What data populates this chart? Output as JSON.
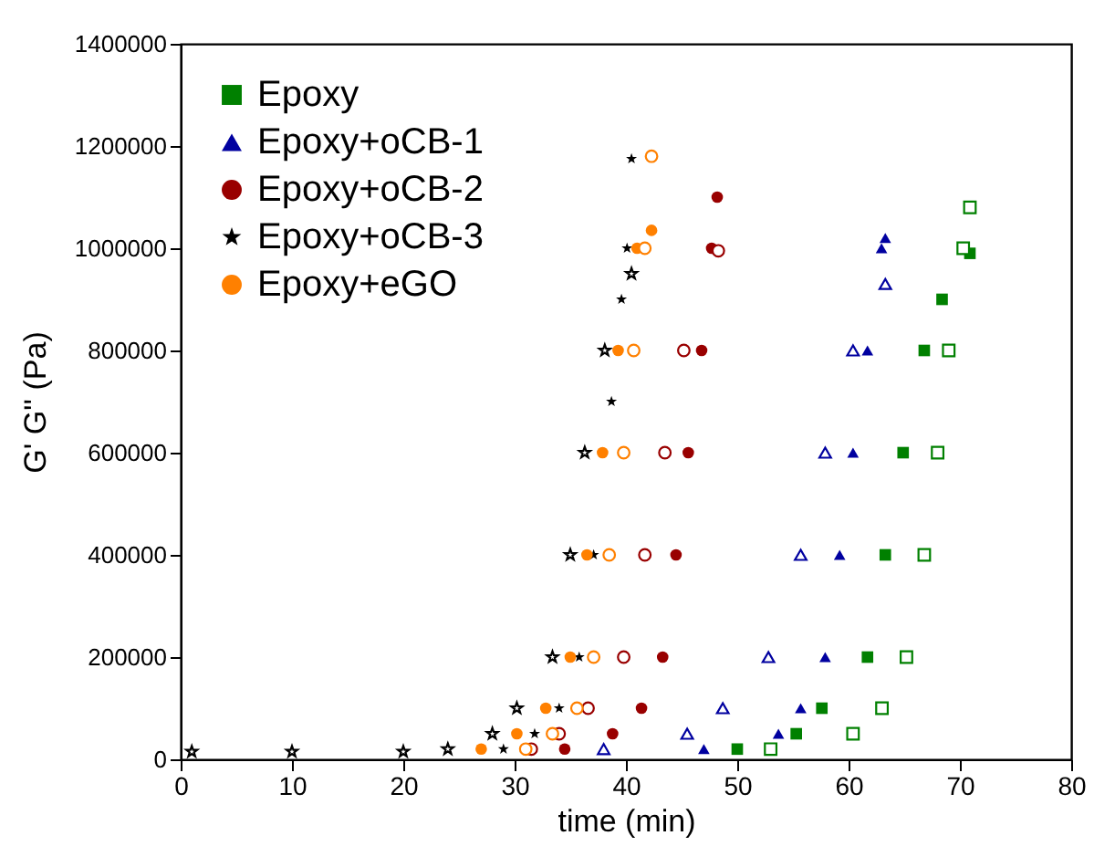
{
  "chart_data": {
    "type": "scatter",
    "xlabel": "time (min)",
    "ylabel": "G' G'' (Pa)",
    "xlim": [
      0,
      80
    ],
    "xticks": [
      0,
      10,
      20,
      30,
      40,
      50,
      60,
      70,
      80
    ],
    "ylim": [
      0,
      1400000
    ],
    "yticks": [
      0,
      200000,
      400000,
      600000,
      800000,
      1000000,
      1200000,
      1400000
    ],
    "grid": false,
    "legend": "top left",
    "series": [
      {
        "name": "Epoxy",
        "color": "#008000",
        "marker": "square",
        "x": [
          50,
          55.3,
          57.6,
          61.7,
          63.3,
          64.9,
          66.8,
          68.4,
          70.9
        ],
        "values": [
          20000,
          50000,
          100000,
          200000,
          400000,
          600000,
          800000,
          900000,
          990000
        ]
      },
      {
        "color": "#008000",
        "marker": "square",
        "x": [
          53,
          60.4,
          63,
          65.2,
          66.8,
          68,
          69,
          70.3,
          70.9
        ],
        "values": [
          20000,
          50000,
          100000,
          200000,
          400000,
          600000,
          800000,
          1000000,
          1080000
        ]
      },
      {
        "name": "Epoxy+oCB-1",
        "color": "#0000a0",
        "marker": "triangle",
        "x": [
          47,
          53.7,
          55.7,
          57.9,
          59.2,
          60.4,
          61.7,
          62.96,
          63.3
        ],
        "values": [
          20000,
          50000,
          100000,
          200000,
          400000,
          600000,
          800000,
          1000000,
          1020000
        ]
      },
      {
        "color": "#0000a0",
        "marker": "triangle",
        "x": [
          38,
          45.5,
          48.7,
          52.8,
          55.7,
          57.9,
          60.4,
          63.3
        ],
        "values": [
          20000,
          50000,
          100000,
          200000,
          400000,
          600000,
          800000,
          930000
        ]
      },
      {
        "name": "Epoxy+oCB-2",
        "color": "#990000",
        "marker": "circle",
        "x": [
          34.5,
          38.8,
          41.4,
          43.3,
          44.5,
          45.6,
          46.8,
          47.7,
          48.2
        ],
        "values": [
          20000,
          50000,
          100000,
          200000,
          400000,
          600000,
          800000,
          1000000,
          1100000
        ]
      },
      {
        "color": "#990000",
        "marker": "circle",
        "x": [
          31.5,
          34,
          36.6,
          39.8,
          41.7,
          43.5,
          45.2,
          48.3
        ],
        "values": [
          20000,
          50000,
          100000,
          200000,
          400000,
          600000,
          800000,
          995000
        ]
      },
      {
        "name": "Epoxy+oCB-3",
        "color": "#000000",
        "marker": "star",
        "x": [
          29,
          31.8,
          34,
          35.8,
          37.1,
          38.7,
          39.6,
          40.1,
          40.5
        ],
        "values": [
          20000,
          50000,
          100000,
          200000,
          400000,
          700000,
          900000,
          1000000,
          1175000
        ]
      },
      {
        "color": "#000000",
        "marker": "star",
        "x": [
          1,
          10,
          20,
          24,
          28,
          30.2,
          33.4,
          35,
          36.3,
          38.1,
          40.5
        ],
        "values": [
          15000,
          15000,
          15000,
          20000,
          50000,
          100000,
          200000,
          400000,
          600000,
          800000,
          950000
        ]
      },
      {
        "name": "Epoxy+eGO",
        "color": "#ff8000",
        "marker": "circle",
        "x": [
          27,
          30.2,
          32.8,
          35,
          36.5,
          37.9,
          39.3,
          41,
          42.3
        ],
        "values": [
          20000,
          50000,
          100000,
          200000,
          400000,
          600000,
          800000,
          1000000,
          1035000
        ]
      },
      {
        "color": "#ff8000",
        "marker": "circle",
        "x": [
          31,
          33.4,
          35.6,
          37.1,
          38.5,
          39.8,
          40.7,
          41.7,
          42.3
        ],
        "values": [
          20000,
          50000,
          100000,
          200000,
          400000,
          600000,
          800000,
          1000000,
          1180000
        ]
      }
    ]
  }
}
